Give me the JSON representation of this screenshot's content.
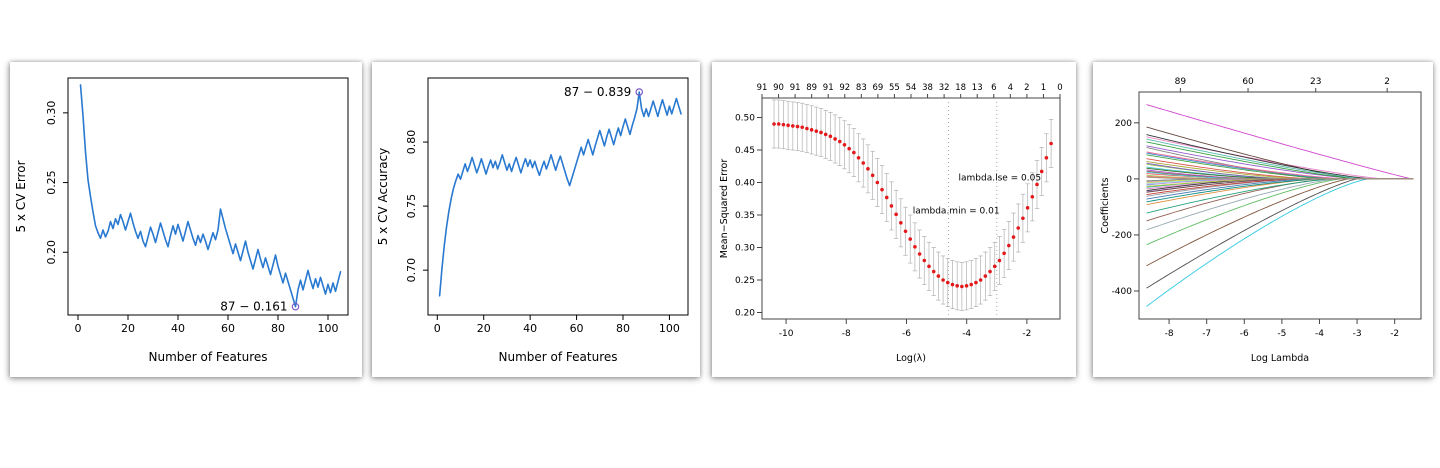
{
  "page": {
    "background": "#ffffff"
  },
  "chart_data": [
    {
      "id": "cv_error",
      "type": "line",
      "title": "",
      "xlabel": "Number of Features",
      "ylabel": "5 x CV Error",
      "xlim": [
        -4,
        108
      ],
      "ylim": [
        0.155,
        0.325
      ],
      "xticks": [
        0,
        20,
        40,
        60,
        80,
        100
      ],
      "yticks": [
        0.2,
        0.25,
        0.3
      ],
      "ytick_decimals": 2,
      "line_color": "#2979d0",
      "x_start": 1,
      "x_step": 1,
      "values": [
        0.32,
        0.298,
        0.272,
        0.252,
        0.24,
        0.229,
        0.219,
        0.214,
        0.21,
        0.216,
        0.211,
        0.215,
        0.222,
        0.217,
        0.224,
        0.22,
        0.227,
        0.222,
        0.216,
        0.222,
        0.228,
        0.221,
        0.215,
        0.21,
        0.215,
        0.208,
        0.204,
        0.211,
        0.218,
        0.213,
        0.207,
        0.214,
        0.221,
        0.215,
        0.209,
        0.204,
        0.212,
        0.219,
        0.213,
        0.22,
        0.214,
        0.208,
        0.215,
        0.222,
        0.216,
        0.21,
        0.205,
        0.212,
        0.207,
        0.213,
        0.208,
        0.202,
        0.208,
        0.214,
        0.209,
        0.216,
        0.231,
        0.224,
        0.217,
        0.211,
        0.205,
        0.199,
        0.206,
        0.2,
        0.194,
        0.201,
        0.208,
        0.2,
        0.194,
        0.188,
        0.195,
        0.202,
        0.195,
        0.189,
        0.196,
        0.19,
        0.184,
        0.191,
        0.198,
        0.19,
        0.184,
        0.178,
        0.185,
        0.179,
        0.173,
        0.167,
        0.161,
        0.173,
        0.18,
        0.173,
        0.18,
        0.187,
        0.18,
        0.174,
        0.181,
        0.175,
        0.182,
        0.176,
        0.17,
        0.177,
        0.171,
        0.178,
        0.172,
        0.179,
        0.186
      ],
      "annotation": {
        "label": "87 − 0.161",
        "x": 87,
        "y": 0.161,
        "color": "#ff0000",
        "marker_color": "#7a5bc7"
      }
    },
    {
      "id": "cv_accuracy",
      "type": "line",
      "title": "",
      "xlabel": "Number of Features",
      "ylabel": "5 x CV Accuracy",
      "xlim": [
        -4,
        108
      ],
      "ylim": [
        0.665,
        0.85
      ],
      "xticks": [
        0,
        20,
        40,
        60,
        80,
        100
      ],
      "yticks": [
        0.7,
        0.75,
        0.8
      ],
      "ytick_decimals": 2,
      "line_color": "#2979d0",
      "x_start": 1,
      "x_step": 1,
      "values": [
        0.68,
        0.701,
        0.719,
        0.734,
        0.746,
        0.756,
        0.764,
        0.77,
        0.775,
        0.771,
        0.777,
        0.783,
        0.777,
        0.782,
        0.788,
        0.782,
        0.776,
        0.781,
        0.787,
        0.781,
        0.775,
        0.781,
        0.786,
        0.78,
        0.785,
        0.779,
        0.784,
        0.79,
        0.784,
        0.778,
        0.783,
        0.777,
        0.783,
        0.788,
        0.782,
        0.776,
        0.782,
        0.787,
        0.781,
        0.786,
        0.78,
        0.785,
        0.779,
        0.774,
        0.78,
        0.785,
        0.779,
        0.784,
        0.79,
        0.784,
        0.778,
        0.784,
        0.789,
        0.783,
        0.777,
        0.771,
        0.766,
        0.772,
        0.778,
        0.784,
        0.79,
        0.796,
        0.79,
        0.796,
        0.802,
        0.796,
        0.79,
        0.797,
        0.803,
        0.809,
        0.803,
        0.797,
        0.804,
        0.81,
        0.804,
        0.798,
        0.805,
        0.811,
        0.805,
        0.812,
        0.818,
        0.812,
        0.806,
        0.813,
        0.819,
        0.826,
        0.839,
        0.826,
        0.82,
        0.826,
        0.82,
        0.826,
        0.832,
        0.826,
        0.82,
        0.827,
        0.833,
        0.827,
        0.821,
        0.828,
        0.822,
        0.828,
        0.834,
        0.828,
        0.822
      ],
      "annotation": {
        "label": "87 − 0.839",
        "x": 87,
        "y": 0.839,
        "color": "#ff0000",
        "marker_color": "#7a5bc7"
      }
    },
    {
      "id": "cv_lasso",
      "type": "scatter-errorbar",
      "title": "",
      "xlabel": "Log(λ)",
      "ylabel": "Mean−Squared Error",
      "xlim": [
        -10.8,
        -0.9
      ],
      "ylim": [
        0.19,
        0.53
      ],
      "xticks": [
        -10,
        -8,
        -6,
        -4,
        -2
      ],
      "yticks": [
        0.2,
        0.25,
        0.3,
        0.35,
        0.4,
        0.45,
        0.5
      ],
      "ytick_decimals": 2,
      "top_axis_labels": [
        "91",
        "90",
        "91",
        "89",
        "91",
        "92",
        "83",
        "69",
        "55",
        "54",
        "38",
        "32",
        "18",
        "13",
        "6",
        "4",
        "2",
        "1",
        "0"
      ],
      "point_color": "#e31a1c",
      "errorbar_color": "#b0b0b0",
      "error": 0.037,
      "x_start": -10.4,
      "x_step": 0.156,
      "values": [
        0.49,
        0.49,
        0.489,
        0.488,
        0.487,
        0.486,
        0.485,
        0.483,
        0.481,
        0.479,
        0.477,
        0.474,
        0.471,
        0.467,
        0.463,
        0.458,
        0.452,
        0.446,
        0.438,
        0.43,
        0.421,
        0.411,
        0.4,
        0.389,
        0.377,
        0.364,
        0.351,
        0.338,
        0.325,
        0.313,
        0.301,
        0.29,
        0.28,
        0.271,
        0.263,
        0.256,
        0.25,
        0.246,
        0.243,
        0.241,
        0.24,
        0.241,
        0.243,
        0.246,
        0.25,
        0.256,
        0.263,
        0.271,
        0.28,
        0.291,
        0.303,
        0.316,
        0.33,
        0.345,
        0.361,
        0.378,
        0.397,
        0.417,
        0.438,
        0.46
      ],
      "vlines": [
        {
          "x": -4.6
        },
        {
          "x": -3.0
        }
      ],
      "annotations": [
        {
          "label": "lambda.lse = 0.05",
          "x": -2.9,
          "y": 0.403
        },
        {
          "label": "lambda.min = 0.01",
          "x": -4.35,
          "y": 0.352
        }
      ]
    },
    {
      "id": "lasso_paths",
      "type": "line-multi",
      "title": "",
      "xlabel": "Log Lambda",
      "ylabel": "Coefficients",
      "xlim": [
        -8.8,
        -1.3
      ],
      "ylim": [
        -500,
        310
      ],
      "xticks": [
        -8,
        -7,
        -6,
        -5,
        -4,
        -3,
        -2
      ],
      "yticks": [
        -400,
        -200,
        0,
        200
      ],
      "top_axis": [
        {
          "x": -7.7,
          "label": "89"
        },
        {
          "x": -5.9,
          "label": "60"
        },
        {
          "x": -4.1,
          "label": "23"
        },
        {
          "x": -2.2,
          "label": "2"
        }
      ],
      "x_left": -8.6,
      "x_right": -1.45,
      "series": [
        {
          "color": "#cf3cc9",
          "y0": 265,
          "xz": -1.55,
          "p": 1.05
        },
        {
          "color": "#e87fc5",
          "y0": 150,
          "xz": -2.3,
          "p": 1.2
        },
        {
          "color": "#8d55c9",
          "y0": 118,
          "xz": -2.9,
          "p": 1.3
        },
        {
          "color": "#5b4036",
          "y0": 185,
          "xz": -3.1,
          "p": 1.15
        },
        {
          "color": "#2b2b2b",
          "y0": 158,
          "xz": -2.6,
          "p": 1.25
        },
        {
          "color": "#2c7fc9",
          "y0": 92,
          "xz": -3.5,
          "p": 1.3
        },
        {
          "color": "#2e9e3a",
          "y0": 132,
          "xz": -3.0,
          "p": 1.2
        },
        {
          "color": "#27c6df",
          "y0": -455,
          "xz": -2.7,
          "p": 1.3
        },
        {
          "color": "#7a4b32",
          "y0": -310,
          "xz": -3.2,
          "p": 1.25
        },
        {
          "color": "#474747",
          "y0": -390,
          "xz": -3.0,
          "p": 1.2
        },
        {
          "color": "#59b85c",
          "y0": -235,
          "xz": -3.4,
          "p": 1.3
        },
        {
          "color": "#8c564b",
          "y0": -150,
          "xz": -3.7,
          "p": 1.4
        },
        {
          "color": "#7f7f7f",
          "y0": 112,
          "xz": -3.9,
          "p": 1.3
        },
        {
          "color": "#d94a42",
          "y0": 72,
          "xz": -4.1,
          "p": 1.4
        },
        {
          "color": "#e08b3a",
          "y0": -92,
          "xz": -4.0,
          "p": 1.3
        },
        {
          "color": "#1b9e77",
          "y0": -122,
          "xz": -3.6,
          "p": 1.35
        },
        {
          "color": "#9b9b9b",
          "y0": -62,
          "xz": -4.5,
          "p": 1.4
        },
        {
          "color": "#a8a832",
          "y0": 62,
          "xz": -4.3,
          "p": 1.4
        },
        {
          "color": "#9467bd",
          "y0": -46,
          "xz": -4.7,
          "p": 1.5
        },
        {
          "color": "#3ec3cf",
          "y0": 42,
          "xz": -4.9,
          "p": 1.5
        },
        {
          "color": "#e377c2",
          "y0": -36,
          "xz": -5.1,
          "p": 1.5
        },
        {
          "color": "#39a03c",
          "y0": 86,
          "xz": -3.7,
          "p": 1.3
        },
        {
          "color": "#3a6fb0",
          "y0": -72,
          "xz": -4.2,
          "p": 1.4
        },
        {
          "color": "#c23531",
          "y0": -56,
          "xz": -4.4,
          "p": 1.5
        },
        {
          "color": "#8bc34a",
          "y0": 52,
          "xz": -4.6,
          "p": 1.5
        },
        {
          "color": "#303030",
          "y0": -42,
          "xz": -5.3,
          "p": 1.5
        },
        {
          "color": "#ab47bc",
          "y0": 32,
          "xz": -5.5,
          "p": 1.6
        },
        {
          "color": "#26a69a",
          "y0": -30,
          "xz": -5.2,
          "p": 1.6
        },
        {
          "color": "#795548",
          "y0": 27,
          "xz": -5.7,
          "p": 1.6
        },
        {
          "color": "#42a5f5",
          "y0": -22,
          "xz": -5.9,
          "p": 1.7
        },
        {
          "color": "#ef5350",
          "y0": 19,
          "xz": -5.6,
          "p": 1.7
        },
        {
          "color": "#76d7ea",
          "y0": -16,
          "xz": -6.1,
          "p": 1.7
        },
        {
          "color": "#9ccc65",
          "y0": 13,
          "xz": -6.3,
          "p": 1.8
        },
        {
          "color": "#f48fb1",
          "y0": -11,
          "xz": -6.0,
          "p": 1.8
        },
        {
          "color": "#607d8b",
          "y0": 9,
          "xz": -6.5,
          "p": 1.8
        },
        {
          "color": "#8d6e63",
          "y0": -7,
          "xz": -6.2,
          "p": 1.8
        },
        {
          "color": "#7e57c2",
          "y0": 56,
          "xz": -4.8,
          "p": 1.5
        },
        {
          "color": "#00897b",
          "y0": -82,
          "xz": -3.9,
          "p": 1.4
        },
        {
          "color": "#c0ca33",
          "y0": -27,
          "xz": -5.0,
          "p": 1.6
        },
        {
          "color": "#f06292",
          "y0": 96,
          "xz": -3.3,
          "p": 1.3
        },
        {
          "color": "#4db6ac",
          "y0": 142,
          "xz": -2.8,
          "p": 1.2
        },
        {
          "color": "#90a4ae",
          "y0": -182,
          "xz": -3.5,
          "p": 1.3
        },
        {
          "color": "#6d4c41",
          "y0": -48,
          "xz": -4.8,
          "p": 1.5
        },
        {
          "color": "#33691e",
          "y0": 38,
          "xz": -5.0,
          "p": 1.5
        },
        {
          "color": "#ce93d8",
          "y0": -20,
          "xz": -5.4,
          "p": 1.6
        },
        {
          "color": "#4dd0e1",
          "y0": 24,
          "xz": -5.8,
          "p": 1.7
        },
        {
          "color": "#d4e157",
          "y0": -14,
          "xz": -6.4,
          "p": 1.8
        },
        {
          "color": "#ff8a65",
          "y0": 10,
          "xz": -6.6,
          "p": 1.8
        },
        {
          "color": "#78909c",
          "y0": -8,
          "xz": -6.8,
          "p": 1.9
        },
        {
          "color": "#a1887f",
          "y0": 6,
          "xz": -7.0,
          "p": 1.9
        }
      ]
    }
  ]
}
